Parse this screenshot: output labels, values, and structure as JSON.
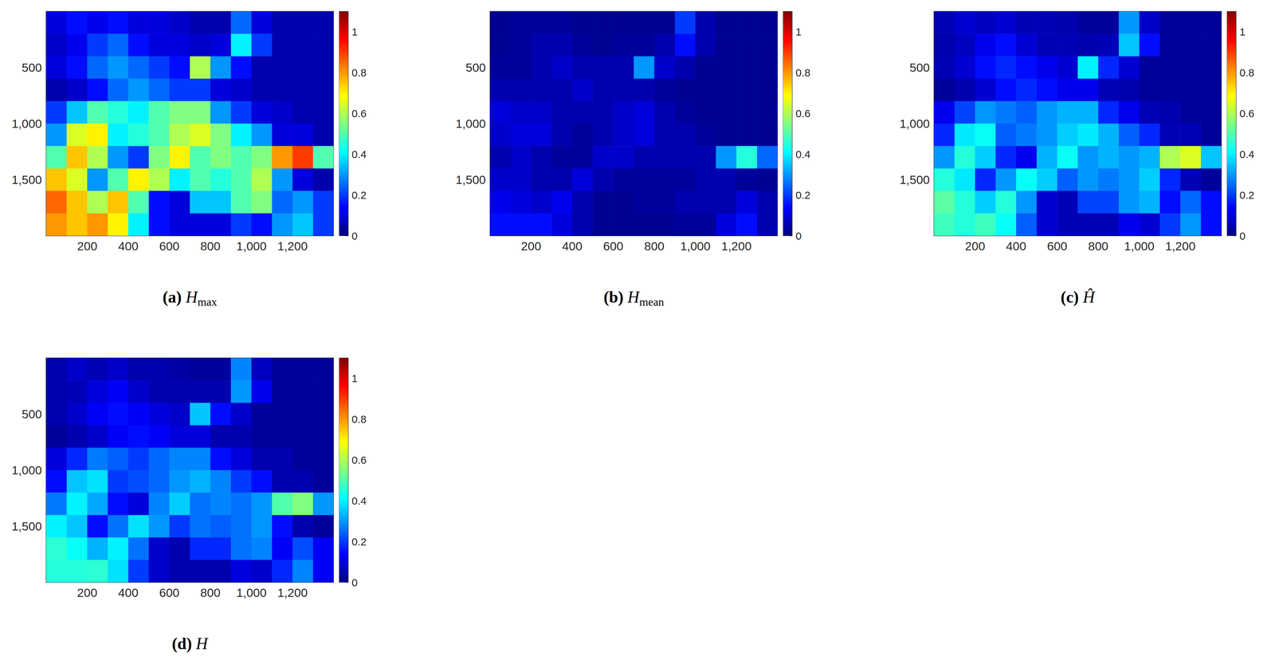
{
  "chart_data": [
    {
      "type": "heatmap",
      "title": {
        "letter": "(a)",
        "symbol": "H",
        "subscript": "max"
      },
      "xlim": [
        0,
        1400
      ],
      "ylim": [
        0,
        2000
      ],
      "xticks": [
        200,
        400,
        600,
        800,
        1000,
        1200
      ],
      "yticks": [
        500,
        1000,
        1500
      ],
      "x_edges": [
        0,
        100,
        200,
        300,
        400,
        500,
        600,
        700,
        800,
        900,
        1000,
        1100,
        1200,
        1300,
        1400
      ],
      "y_edges": [
        0,
        200,
        400,
        600,
        800,
        1000,
        1200,
        1400,
        1600,
        1800,
        2000
      ],
      "cells": [
        [
          0.1,
          0.15,
          0.12,
          0.15,
          0.1,
          0.1,
          0.08,
          0.05,
          0.05,
          0.25,
          0.1,
          0.05,
          0.05,
          0.05
        ],
        [
          0.08,
          0.12,
          0.2,
          0.25,
          0.15,
          0.1,
          0.1,
          0.08,
          0.1,
          0.4,
          0.2,
          0.05,
          0.05,
          0.05
        ],
        [
          0.1,
          0.15,
          0.25,
          0.3,
          0.25,
          0.2,
          0.15,
          0.6,
          0.3,
          0.15,
          0.05,
          0.05,
          0.05,
          0.05
        ],
        [
          0.05,
          0.08,
          0.15,
          0.25,
          0.3,
          0.25,
          0.2,
          0.2,
          0.1,
          0.08,
          0.05,
          0.05,
          0.05,
          0.05
        ],
        [
          0.2,
          0.35,
          0.5,
          0.45,
          0.4,
          0.5,
          0.55,
          0.55,
          0.3,
          0.2,
          0.1,
          0.08,
          0.05,
          0.05
        ],
        [
          0.3,
          0.65,
          0.7,
          0.4,
          0.45,
          0.5,
          0.6,
          0.65,
          0.55,
          0.4,
          0.3,
          0.1,
          0.1,
          0.05
        ],
        [
          0.5,
          0.75,
          0.6,
          0.3,
          0.2,
          0.55,
          0.7,
          0.5,
          0.55,
          0.5,
          0.55,
          0.8,
          0.9,
          0.5
        ],
        [
          0.75,
          0.65,
          0.3,
          0.5,
          0.7,
          0.6,
          0.4,
          0.5,
          0.45,
          0.5,
          0.6,
          0.3,
          0.1,
          0.05
        ],
        [
          0.85,
          0.75,
          0.6,
          0.75,
          0.5,
          0.15,
          0.1,
          0.35,
          0.35,
          0.5,
          0.55,
          0.25,
          0.3,
          0.2
        ],
        [
          0.8,
          0.75,
          0.8,
          0.7,
          0.4,
          0.15,
          0.1,
          0.1,
          0.1,
          0.2,
          0.15,
          0.3,
          0.35,
          0.2
        ]
      ],
      "colorbar": {
        "range": [
          0,
          1.1
        ],
        "ticks": [
          0,
          0.2,
          0.4,
          0.6,
          0.8,
          1
        ]
      }
    },
    {
      "type": "heatmap",
      "title": {
        "letter": "(b)",
        "symbol": "H",
        "subscript": "mean"
      },
      "xlim": [
        0,
        1400
      ],
      "ylim": [
        0,
        2000
      ],
      "xticks": [
        200,
        400,
        600,
        800,
        1000,
        1200
      ],
      "yticks": [
        500,
        1000,
        1500
      ],
      "x_edges": [
        0,
        100,
        200,
        300,
        400,
        500,
        600,
        700,
        800,
        900,
        1000,
        1100,
        1200,
        1300,
        1400
      ],
      "y_edges": [
        0,
        200,
        400,
        600,
        800,
        1000,
        1200,
        1400,
        1600,
        1800,
        2000
      ],
      "cells": [
        [
          0.02,
          0.03,
          0.03,
          0.03,
          0.02,
          0.02,
          0.02,
          0.02,
          0.02,
          0.2,
          0.05,
          0.02,
          0.02,
          0.02
        ],
        [
          0.02,
          0.03,
          0.05,
          0.05,
          0.03,
          0.02,
          0.03,
          0.03,
          0.05,
          0.15,
          0.05,
          0.02,
          0.02,
          0.02
        ],
        [
          0.03,
          0.03,
          0.05,
          0.08,
          0.05,
          0.05,
          0.05,
          0.3,
          0.08,
          0.05,
          0.02,
          0.02,
          0.02,
          0.02
        ],
        [
          0.05,
          0.05,
          0.05,
          0.05,
          0.08,
          0.05,
          0.05,
          0.05,
          0.03,
          0.02,
          0.02,
          0.02,
          0.02,
          0.02
        ],
        [
          0.1,
          0.08,
          0.08,
          0.05,
          0.05,
          0.05,
          0.08,
          0.1,
          0.05,
          0.03,
          0.02,
          0.02,
          0.02,
          0.02
        ],
        [
          0.08,
          0.1,
          0.1,
          0.05,
          0.03,
          0.05,
          0.08,
          0.1,
          0.05,
          0.05,
          0.03,
          0.02,
          0.02,
          0.02
        ],
        [
          0.05,
          0.08,
          0.05,
          0.03,
          0.03,
          0.08,
          0.08,
          0.05,
          0.05,
          0.05,
          0.05,
          0.3,
          0.45,
          0.25
        ],
        [
          0.08,
          0.08,
          0.05,
          0.05,
          0.1,
          0.05,
          0.03,
          0.03,
          0.03,
          0.03,
          0.05,
          0.05,
          0.03,
          0.02
        ],
        [
          0.12,
          0.1,
          0.08,
          0.12,
          0.05,
          0.02,
          0.02,
          0.03,
          0.03,
          0.05,
          0.05,
          0.05,
          0.1,
          0.05
        ],
        [
          0.15,
          0.15,
          0.15,
          0.1,
          0.05,
          0.02,
          0.02,
          0.02,
          0.02,
          0.03,
          0.03,
          0.1,
          0.15,
          0.05
        ]
      ],
      "colorbar": {
        "range": [
          0,
          1.1
        ],
        "ticks": [
          0,
          0.2,
          0.4,
          0.6,
          0.8,
          1
        ]
      }
    },
    {
      "type": "heatmap",
      "title": {
        "letter": "(c)",
        "symbol": "Ĥ"
      },
      "xlim": [
        0,
        1400
      ],
      "ylim": [
        0,
        2000
      ],
      "xticks": [
        200,
        400,
        600,
        800,
        1000,
        1200
      ],
      "yticks": [
        500,
        1000,
        1500
      ],
      "x_edges": [
        0,
        100,
        200,
        300,
        400,
        500,
        600,
        700,
        800,
        900,
        1000,
        1100,
        1200,
        1300,
        1400
      ],
      "y_edges": [
        0,
        200,
        400,
        600,
        800,
        1000,
        1200,
        1400,
        1600,
        1800,
        2000
      ],
      "cells": [
        [
          0.06,
          0.09,
          0.07,
          0.09,
          0.06,
          0.06,
          0.05,
          0.03,
          0.03,
          0.3,
          0.08,
          0.03,
          0.03,
          0.03
        ],
        [
          0.05,
          0.07,
          0.12,
          0.15,
          0.09,
          0.06,
          0.06,
          0.05,
          0.06,
          0.35,
          0.15,
          0.03,
          0.03,
          0.03
        ],
        [
          0.06,
          0.09,
          0.15,
          0.18,
          0.15,
          0.12,
          0.09,
          0.4,
          0.18,
          0.09,
          0.03,
          0.03,
          0.03,
          0.03
        ],
        [
          0.03,
          0.05,
          0.09,
          0.15,
          0.18,
          0.15,
          0.12,
          0.12,
          0.06,
          0.05,
          0.03,
          0.03,
          0.03,
          0.03
        ],
        [
          0.12,
          0.21,
          0.3,
          0.27,
          0.24,
          0.3,
          0.33,
          0.33,
          0.18,
          0.12,
          0.06,
          0.05,
          0.03,
          0.03
        ],
        [
          0.18,
          0.39,
          0.42,
          0.24,
          0.27,
          0.3,
          0.36,
          0.39,
          0.33,
          0.24,
          0.18,
          0.06,
          0.06,
          0.03
        ],
        [
          0.3,
          0.45,
          0.36,
          0.18,
          0.12,
          0.33,
          0.42,
          0.3,
          0.33,
          0.3,
          0.33,
          0.6,
          0.65,
          0.35
        ],
        [
          0.45,
          0.39,
          0.18,
          0.3,
          0.42,
          0.36,
          0.24,
          0.3,
          0.27,
          0.3,
          0.36,
          0.18,
          0.06,
          0.03
        ],
        [
          0.51,
          0.45,
          0.36,
          0.45,
          0.3,
          0.09,
          0.06,
          0.21,
          0.21,
          0.3,
          0.33,
          0.15,
          0.25,
          0.15
        ],
        [
          0.48,
          0.45,
          0.48,
          0.42,
          0.24,
          0.09,
          0.06,
          0.06,
          0.06,
          0.12,
          0.09,
          0.2,
          0.3,
          0.15
        ]
      ],
      "colorbar": {
        "range": [
          0,
          1.1
        ],
        "ticks": [
          0,
          0.2,
          0.4,
          0.6,
          0.8,
          1
        ]
      }
    },
    {
      "type": "heatmap",
      "title": {
        "letter": "(d)",
        "symbol": "H"
      },
      "xlim": [
        0,
        1400
      ],
      "ylim": [
        0,
        2000
      ],
      "xticks": [
        200,
        400,
        600,
        800,
        1000,
        1200
      ],
      "yticks": [
        500,
        1000,
        1500
      ],
      "x_edges": [
        0,
        100,
        200,
        300,
        400,
        500,
        600,
        700,
        800,
        900,
        1000,
        1100,
        1200,
        1300,
        1400
      ],
      "y_edges": [
        0,
        200,
        400,
        600,
        800,
        1000,
        1200,
        1400,
        1600,
        1800,
        2000
      ],
      "cells": [
        [
          0.05,
          0.08,
          0.06,
          0.08,
          0.05,
          0.05,
          0.04,
          0.03,
          0.03,
          0.28,
          0.07,
          0.03,
          0.03,
          0.03
        ],
        [
          0.05,
          0.06,
          0.1,
          0.13,
          0.08,
          0.05,
          0.05,
          0.05,
          0.05,
          0.3,
          0.12,
          0.03,
          0.03,
          0.03
        ],
        [
          0.05,
          0.08,
          0.13,
          0.15,
          0.13,
          0.1,
          0.08,
          0.35,
          0.15,
          0.08,
          0.03,
          0.03,
          0.03,
          0.03
        ],
        [
          0.03,
          0.05,
          0.08,
          0.13,
          0.15,
          0.13,
          0.1,
          0.1,
          0.05,
          0.05,
          0.03,
          0.03,
          0.03,
          0.03
        ],
        [
          0.1,
          0.18,
          0.27,
          0.24,
          0.2,
          0.25,
          0.28,
          0.28,
          0.15,
          0.1,
          0.05,
          0.05,
          0.03,
          0.03
        ],
        [
          0.15,
          0.35,
          0.38,
          0.2,
          0.22,
          0.25,
          0.3,
          0.33,
          0.28,
          0.2,
          0.15,
          0.05,
          0.05,
          0.03
        ],
        [
          0.27,
          0.4,
          0.32,
          0.15,
          0.1,
          0.28,
          0.36,
          0.26,
          0.28,
          0.26,
          0.3,
          0.5,
          0.55,
          0.3
        ],
        [
          0.4,
          0.35,
          0.15,
          0.26,
          0.38,
          0.3,
          0.2,
          0.26,
          0.24,
          0.26,
          0.3,
          0.15,
          0.05,
          0.03
        ],
        [
          0.46,
          0.42,
          0.33,
          0.4,
          0.26,
          0.08,
          0.05,
          0.18,
          0.18,
          0.26,
          0.28,
          0.13,
          0.22,
          0.13
        ],
        [
          0.45,
          0.45,
          0.46,
          0.38,
          0.2,
          0.08,
          0.05,
          0.05,
          0.05,
          0.1,
          0.08,
          0.18,
          0.28,
          0.13
        ]
      ],
      "colorbar": {
        "range": [
          0,
          1.1
        ],
        "ticks": [
          0,
          0.2,
          0.4,
          0.6,
          0.8,
          1
        ]
      }
    }
  ]
}
